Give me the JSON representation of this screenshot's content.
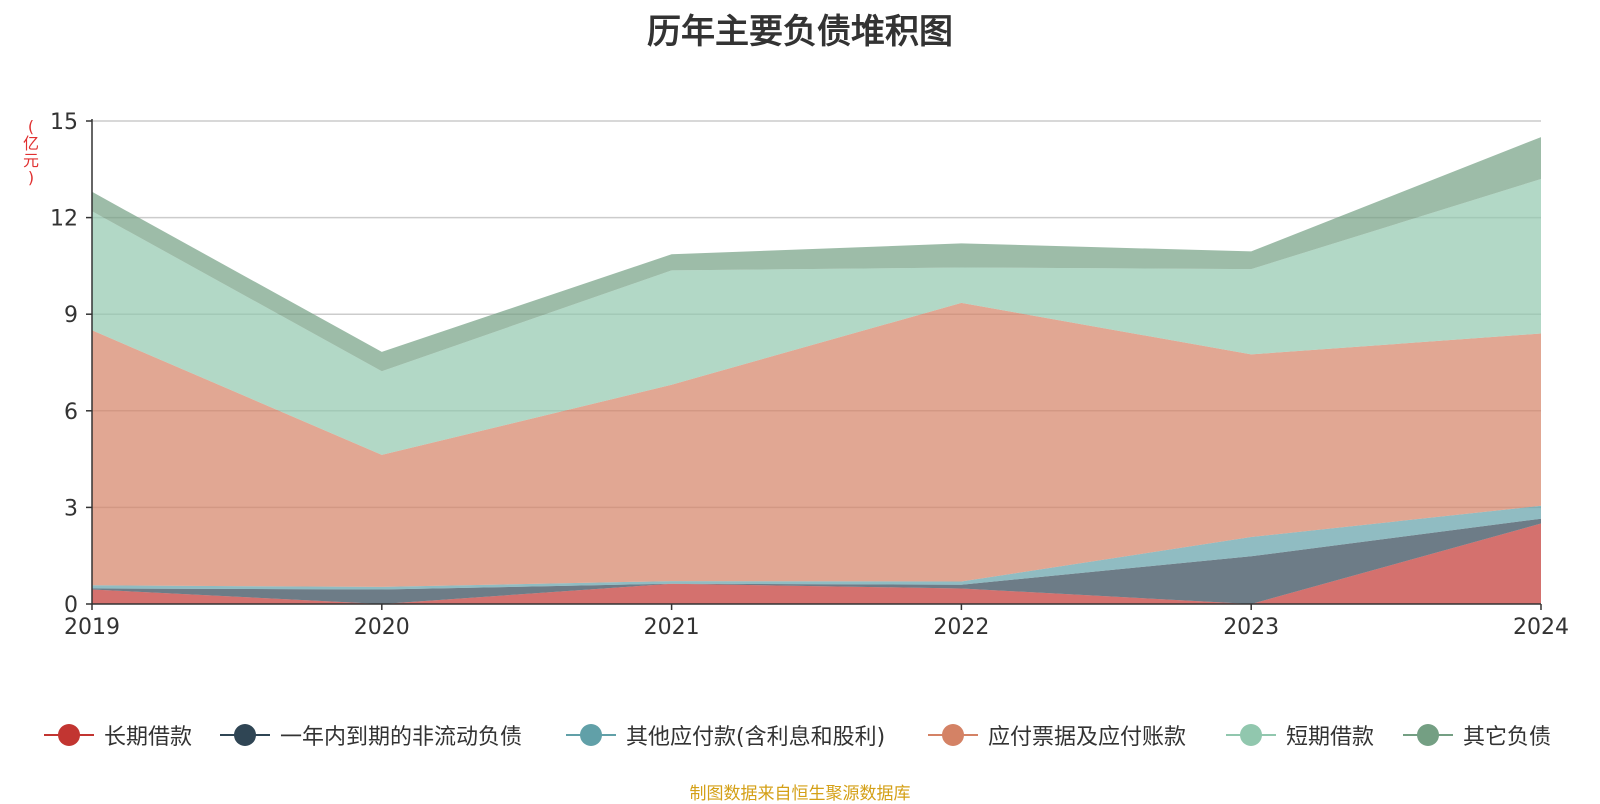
{
  "chart_data": {
    "type": "area",
    "stacked": true,
    "title": "历年主要负债堆积图",
    "ylabel": "(亿元)",
    "xlabel": "",
    "categories": [
      "2019",
      "2020",
      "2021",
      "2022",
      "2023",
      "2024"
    ],
    "y_ticks": [
      "0",
      "3",
      "6",
      "9",
      "12",
      "15"
    ],
    "ylim": [
      0,
      15
    ],
    "grid": true,
    "legend_position": "bottom",
    "series": [
      {
        "name": "长期借款",
        "color": "#c23531",
        "values": [
          0.45,
          0.0,
          0.63,
          0.48,
          0.0,
          2.5
        ]
      },
      {
        "name": "一年内到期的非流动负债",
        "color": "#2f4554",
        "values": [
          0.03,
          0.45,
          0.0,
          0.12,
          1.48,
          0.15
        ]
      },
      {
        "name": "其他应付款(含利息和股利)",
        "color": "#61a0a8",
        "values": [
          0.1,
          0.08,
          0.08,
          0.1,
          0.6,
          0.4
        ]
      },
      {
        "name": "应付票据及应付账款",
        "color": "#d48265",
        "values": [
          7.92,
          4.1,
          6.1,
          8.65,
          5.67,
          5.35
        ]
      },
      {
        "name": "短期借款",
        "color": "#91c7ae",
        "values": [
          3.7,
          2.6,
          3.55,
          1.1,
          2.65,
          4.8
        ]
      },
      {
        "name": "其它负债",
        "color": "#749f83",
        "values": [
          0.6,
          0.6,
          0.5,
          0.75,
          0.55,
          1.3
        ]
      }
    ]
  },
  "source_note": "制图数据来自恒生聚源数据库"
}
